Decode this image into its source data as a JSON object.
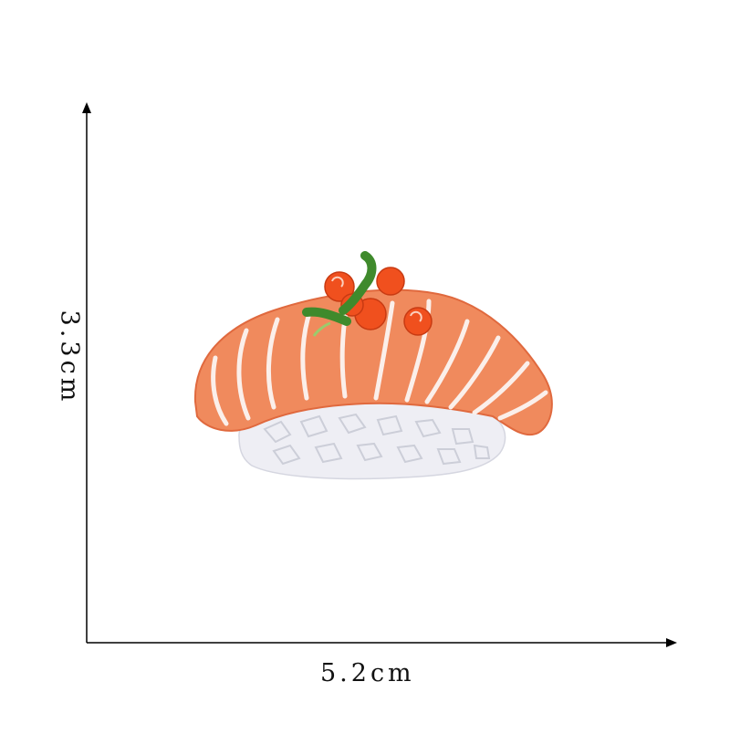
{
  "dimensions": {
    "width_label": "5.2cm",
    "height_label": "3.3cm"
  },
  "subject": "embroidered-salmon-sushi-patch",
  "colors": {
    "salmon": "#F08A5D",
    "salmon_dark": "#E0693E",
    "stripe": "#FBEFEA",
    "rice": "#EEEEF4",
    "rice_shadow": "#C9CBD6",
    "roe": "#F0501E",
    "scallion": "#3F8A2C",
    "axis": "#000000"
  }
}
